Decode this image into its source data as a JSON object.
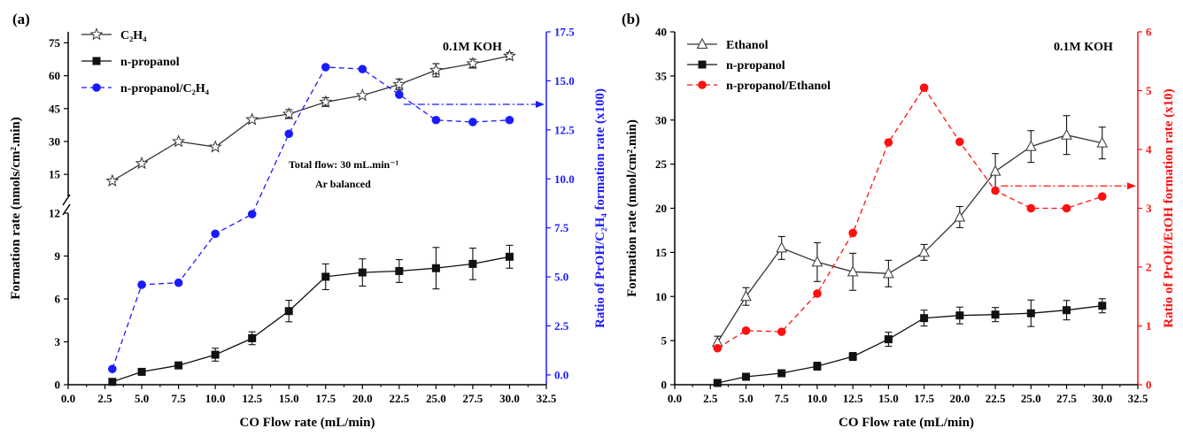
{
  "chart_data": [
    {
      "type": "line",
      "panel": "(a)",
      "condition": "0.1M KOH",
      "xlabel": "CO Flow rate (mL/min)",
      "ylabel": "Formation rate (nmols/cm².min)",
      "y2label": "Ratio of PrOH/C₂H₄ formation rate (x100)",
      "annotation_line1": "Total flow: 30 mL.min⁻¹",
      "annotation_line2": "Ar balanced",
      "xlim": [
        0,
        32.5
      ],
      "xticks": [
        "0.0",
        "2.5",
        "5.0",
        "7.5",
        "10.0",
        "12.5",
        "15.0",
        "17.5",
        "20.0",
        "22.5",
        "25.0",
        "27.5",
        "30.0",
        "32.5"
      ],
      "y_axis_broken": true,
      "ylim_lower": [
        0,
        12
      ],
      "yticks_lower": [
        "0",
        "3",
        "6",
        "9",
        "12"
      ],
      "ylim_upper": [
        5,
        80
      ],
      "yticks_upper": [
        "15",
        "30",
        "45",
        "60",
        "75"
      ],
      "y2lim": [
        -0.5,
        17.5
      ],
      "y2ticks": [
        "0.0",
        "2.5",
        "5.0",
        "7.5",
        "10.0",
        "12.5",
        "15.0",
        "17.5"
      ],
      "x": [
        3,
        5,
        7.5,
        10,
        12.5,
        15,
        17.5,
        20,
        22.5,
        25,
        27.5,
        30
      ],
      "series": [
        {
          "name": "C₂H₄",
          "axis": "left-upper",
          "marker": "star",
          "color": "#333333",
          "dash": "solid",
          "values": [
            12,
            20,
            30,
            27.5,
            40,
            42.5,
            48,
            51,
            56,
            62.5,
            65.5,
            69
          ],
          "errors": [
            0,
            0,
            0,
            0,
            0,
            2,
            2,
            0,
            2.5,
            3,
            2,
            1.5
          ]
        },
        {
          "name": "n-propanol",
          "axis": "left-lower",
          "marker": "square",
          "color": "#111111",
          "dash": "solid",
          "values": [
            0.2,
            0.9,
            1.35,
            2.1,
            3.25,
            5.15,
            7.55,
            7.85,
            7.95,
            8.15,
            8.45,
            8.95
          ],
          "errors": [
            0,
            0,
            0,
            0.45,
            0.45,
            0.75,
            0.9,
            0.95,
            0.8,
            1.45,
            1.1,
            0.8
          ]
        },
        {
          "name": "n-propanol/C₂H₄",
          "axis": "right",
          "marker": "circle",
          "color": "#1b1bff",
          "dash": "dashed",
          "values": [
            0.3,
            4.6,
            4.7,
            7.2,
            8.2,
            12.3,
            15.7,
            15.6,
            14.3,
            13.0,
            12.9,
            13.0
          ],
          "errors": []
        }
      ],
      "legend_position": "top-left"
    },
    {
      "type": "line",
      "panel": "(b)",
      "condition": "0.1M KOH",
      "xlabel": "CO Flow rate (mL/min)",
      "ylabel": "Formation rate (nmol/cm².min)",
      "y2label": "Ratio of PrOH/EtOH formation rate (x10)",
      "xlim": [
        0,
        32.5
      ],
      "xticks": [
        "0.0",
        "2.5",
        "5.0",
        "7.5",
        "10.0",
        "12.5",
        "15.0",
        "17.5",
        "20.0",
        "22.5",
        "25.0",
        "27.5",
        "30.0",
        "32.5"
      ],
      "ylim": [
        0,
        40
      ],
      "yticks": [
        "0",
        "5",
        "10",
        "15",
        "20",
        "25",
        "30",
        "35",
        "40"
      ],
      "y2lim": [
        0,
        6
      ],
      "y2ticks": [
        "0",
        "1",
        "2",
        "3",
        "4",
        "5",
        "6"
      ],
      "x": [
        3,
        5,
        7.5,
        10,
        12.5,
        15,
        17.5,
        20,
        22.5,
        25,
        27.5,
        30
      ],
      "series": [
        {
          "name": "Ethanol",
          "axis": "left",
          "marker": "triangle",
          "color": "#333333",
          "dash": "solid",
          "values": [
            4.8,
            10.0,
            15.5,
            13.9,
            12.8,
            12.6,
            15.0,
            19.0,
            24.2,
            27.0,
            28.3,
            27.4
          ],
          "errors": [
            0.7,
            1.0,
            1.3,
            2.2,
            2.1,
            1.5,
            0.9,
            1.2,
            2.0,
            1.8,
            2.2,
            1.8
          ]
        },
        {
          "name": "n-propanol",
          "axis": "left",
          "marker": "square",
          "color": "#111111",
          "dash": "solid",
          "values": [
            0.2,
            0.9,
            1.3,
            2.1,
            3.2,
            5.15,
            7.55,
            7.85,
            7.95,
            8.1,
            8.45,
            8.95
          ],
          "errors": [
            0,
            0,
            0,
            0.45,
            0.45,
            0.8,
            0.9,
            0.95,
            0.8,
            1.5,
            1.1,
            0.8
          ]
        },
        {
          "name": "n-propanol/Ethanol",
          "axis": "right",
          "marker": "circle",
          "color": "#ff0f0f",
          "dash": "dashed",
          "values": [
            0.62,
            0.92,
            0.9,
            1.55,
            2.58,
            4.12,
            5.05,
            4.13,
            3.3,
            3.0,
            3.0,
            3.2
          ],
          "errors": []
        }
      ],
      "legend_position": "top-left"
    }
  ]
}
